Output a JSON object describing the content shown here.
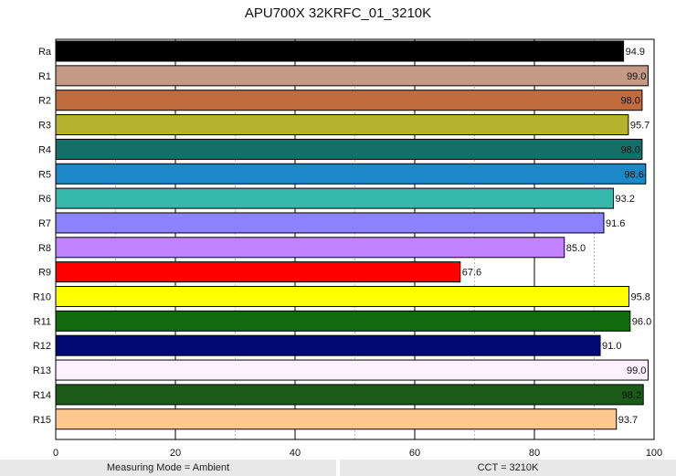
{
  "chart_data": {
    "type": "bar",
    "orientation": "horizontal",
    "title": "APU700X 32KRFC_01_3210K",
    "categories": [
      "Ra",
      "R1",
      "R2",
      "R3",
      "R4",
      "R5",
      "R6",
      "R7",
      "R8",
      "R9",
      "R10",
      "R11",
      "R12",
      "R13",
      "R14",
      "R15"
    ],
    "values": [
      94.9,
      99.0,
      98.0,
      95.7,
      98.0,
      98.6,
      93.2,
      91.6,
      85.0,
      67.6,
      95.8,
      96.0,
      91.0,
      99.0,
      98.2,
      93.7
    ],
    "value_labels": [
      "94.9",
      "99.0",
      "98.0",
      "95.7",
      "98.0",
      "98.6",
      "93.2",
      "91.6",
      "85.0",
      "67.6",
      "95.8",
      "96.0",
      "91.0",
      "99.0",
      "98.2",
      "93.7"
    ],
    "colors": [
      "#000000",
      "#c49a87",
      "#c06c3e",
      "#b5b22e",
      "#127068",
      "#1b88c8",
      "#36b8ac",
      "#8a82ff",
      "#c182ff",
      "#ff0000",
      "#ffff00",
      "#116a0c",
      "#000a72",
      "#fff0ff",
      "#1c5a18",
      "#ffc890"
    ],
    "xlim": [
      0,
      100
    ],
    "xticks": [
      "0",
      "20",
      "40",
      "60",
      "80",
      "100"
    ],
    "grid": "vertical, solid at 20s, dashed at 10s",
    "xlabel": "",
    "ylabel": ""
  },
  "footer": {
    "left": "Measuring Mode = Ambient",
    "right": "CCT = 3210K"
  }
}
